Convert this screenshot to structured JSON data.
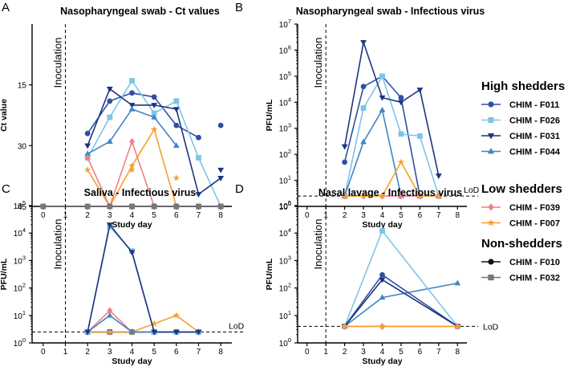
{
  "colors": {
    "F011": "#2e4fa3",
    "F026": "#7ec4e8",
    "F031": "#1d3480",
    "F044": "#3d86c4",
    "F039": "#f07f88",
    "F007": "#f5a02e",
    "F010": "#111111",
    "F032": "#777777"
  },
  "legend": {
    "groups": [
      {
        "title": "High shedders",
        "items": [
          {
            "key": "F011",
            "label": "CHIM - F011",
            "marker": "circle"
          },
          {
            "key": "F026",
            "label": "CHIM - F026",
            "marker": "square"
          },
          {
            "key": "F031",
            "label": "CHIM - F031",
            "marker": "tri-down"
          },
          {
            "key": "F044",
            "label": "CHIM - F044",
            "marker": "tri-up"
          }
        ]
      },
      {
        "title": "Low shedders",
        "items": [
          {
            "key": "F039",
            "label": "CHIM - F039",
            "marker": "diamond"
          },
          {
            "key": "F007",
            "label": "CHIM - F007",
            "marker": "star"
          }
        ]
      },
      {
        "title": "Non-shedders",
        "items": [
          {
            "key": "F010",
            "label": "CHIM - F010",
            "marker": "circle"
          },
          {
            "key": "F032",
            "label": "CHIM - F032",
            "marker": "square"
          }
        ]
      }
    ]
  },
  "chart_data": [
    {
      "id": "A",
      "panel_letter": "A",
      "type": "line",
      "title": "Nasopharyngeal swab - Ct values",
      "xlabel": "Study day",
      "ylabel": "Ct value",
      "yscale": "linear",
      "yreversed": true,
      "ylim": [
        0,
        45
      ],
      "xlim": [
        -0.5,
        8.5
      ],
      "x_ticks": [
        "0",
        "1",
        "2",
        "3",
        "4",
        "5",
        "6",
        "7",
        "8"
      ],
      "y_ticks": [
        {
          "v": 15,
          "label": "15"
        },
        {
          "v": 30,
          "label": "30"
        },
        {
          "v": 45,
          "label": "45"
        }
      ],
      "annotation": "Inoculation",
      "series": [
        {
          "key": "F011",
          "points": [
            [
              2,
              27
            ],
            [
              3,
              19
            ],
            [
              4,
              17
            ],
            [
              5,
              18
            ],
            [
              6,
              25
            ],
            [
              7,
              28
            ]
          ],
          "extra_points": [
            [
              8,
              25
            ]
          ]
        },
        {
          "key": "F026",
          "points": [
            [
              2,
              33
            ],
            [
              3,
              23
            ],
            [
              4,
              14
            ],
            [
              5,
              22
            ],
            [
              6,
              19
            ],
            [
              7,
              33
            ],
            [
              8,
              45
            ]
          ]
        },
        {
          "key": "F031",
          "points": [
            [
              2,
              30
            ],
            [
              3,
              16
            ],
            [
              4,
              20
            ],
            [
              5,
              20
            ],
            [
              6,
              21
            ],
            [
              7,
              42
            ],
            [
              8,
              38
            ]
          ],
          "extra_points": [
            [
              8,
              36
            ]
          ]
        },
        {
          "key": "F044",
          "points": [
            [
              2,
              32
            ],
            [
              3,
              29
            ],
            [
              4,
              21
            ],
            [
              5,
              23
            ],
            [
              6,
              30
            ]
          ]
        },
        {
          "key": "F039",
          "points": [
            [
              2,
              33
            ],
            [
              3,
              45
            ],
            [
              4,
              29
            ],
            [
              5,
              45
            ]
          ]
        },
        {
          "key": "F007",
          "points": [
            [
              2,
              36
            ],
            [
              3,
              45
            ],
            [
              4,
              35
            ],
            [
              5,
              26
            ],
            [
              6,
              45
            ]
          ],
          "extra_points": [
            [
              4,
              36
            ],
            [
              6,
              38
            ]
          ]
        },
        {
          "key": "F010",
          "points": [
            [
              0,
              45
            ],
            [
              2,
              45
            ],
            [
              3,
              45
            ],
            [
              4,
              45
            ],
            [
              5,
              45
            ],
            [
              6,
              45
            ],
            [
              7,
              45
            ],
            [
              8,
              45
            ]
          ]
        },
        {
          "key": "F032",
          "points": [
            [
              0,
              45
            ],
            [
              2,
              45
            ],
            [
              3,
              45
            ],
            [
              4,
              45
            ],
            [
              5,
              45
            ],
            [
              6,
              45
            ],
            [
              7,
              45
            ],
            [
              8,
              45
            ]
          ]
        }
      ]
    },
    {
      "id": "B",
      "panel_letter": "B",
      "type": "line",
      "title": "Nasopharyngeal swab - Infectious virus",
      "xlabel": "Study day",
      "ylabel": "PFU/mL",
      "yscale": "log",
      "ylim": [
        1,
        10000000
      ],
      "xlim": [
        -0.5,
        8.5
      ],
      "x_ticks": [
        "0",
        "1",
        "2",
        "3",
        "4",
        "5",
        "6",
        "7",
        "8"
      ],
      "y_ticks": [
        {
          "v": 1,
          "base": "10",
          "exp": "0"
        },
        {
          "v": 10,
          "base": "10",
          "exp": "1"
        },
        {
          "v": 100,
          "base": "10",
          "exp": "2"
        },
        {
          "v": 1000,
          "base": "10",
          "exp": "3"
        },
        {
          "v": 10000,
          "base": "10",
          "exp": "4"
        },
        {
          "v": 100000,
          "base": "10",
          "exp": "5"
        },
        {
          "v": 1000000,
          "base": "10",
          "exp": "6"
        },
        {
          "v": 10000000,
          "base": "10",
          "exp": "7"
        }
      ],
      "annotation": "Inoculation",
      "lod": 2.5,
      "lod_label": "LoD",
      "series": [
        {
          "key": "F011",
          "points": [
            [
              2,
              50
            ],
            [
              3,
              40000
            ],
            [
              4,
              100000
            ],
            [
              5,
              15000
            ],
            [
              6,
              2.5
            ],
            [
              7,
              2.5
            ]
          ]
        },
        {
          "key": "F026",
          "points": [
            [
              2,
              2.5
            ],
            [
              3,
              6000
            ],
            [
              4,
              100000
            ],
            [
              5,
              600
            ],
            [
              6,
              500
            ],
            [
              7,
              2.5
            ]
          ]
        },
        {
          "key": "F031",
          "points": [
            [
              2,
              200
            ],
            [
              3,
              2000000
            ],
            [
              4,
              15000
            ],
            [
              5,
              10000
            ],
            [
              6,
              30000
            ],
            [
              7,
              15
            ]
          ]
        },
        {
          "key": "F044",
          "points": [
            [
              2,
              2.5
            ],
            [
              3,
              300
            ],
            [
              4,
              5000
            ],
            [
              5,
              2.5
            ],
            [
              6,
              2.5
            ],
            [
              7,
              2.5
            ]
          ]
        },
        {
          "key": "F039",
          "points": [
            [
              2,
              2.5
            ],
            [
              3,
              2.5
            ],
            [
              4,
              2.5
            ],
            [
              5,
              2.5
            ],
            [
              6,
              2.5
            ],
            [
              7,
              2.5
            ]
          ]
        },
        {
          "key": "F007",
          "points": [
            [
              2,
              2.5
            ],
            [
              3,
              2.5
            ],
            [
              4,
              2.5
            ],
            [
              5,
              50
            ],
            [
              6,
              2.5
            ],
            [
              7,
              2.5
            ]
          ]
        }
      ]
    },
    {
      "id": "C",
      "panel_letter": "C",
      "type": "line",
      "title": "Saliva - Infectious virus",
      "xlabel": "Study day",
      "ylabel": "PFU/mL",
      "yscale": "log",
      "ylim": [
        1,
        100000
      ],
      "xlim": [
        -0.5,
        8.5
      ],
      "x_ticks": [
        "0",
        "1",
        "2",
        "3",
        "4",
        "5",
        "6",
        "7",
        "8"
      ],
      "y_ticks": [
        {
          "v": 1,
          "base": "10",
          "exp": "0"
        },
        {
          "v": 10,
          "base": "10",
          "exp": "1"
        },
        {
          "v": 100,
          "base": "10",
          "exp": "2"
        },
        {
          "v": 1000,
          "base": "10",
          "exp": "3"
        },
        {
          "v": 10000,
          "base": "10",
          "exp": "4"
        },
        {
          "v": 100000,
          "base": "10",
          "exp": "5"
        }
      ],
      "annotation": "Inoculation",
      "lod": 2.5,
      "lod_label": "LoD",
      "series": [
        {
          "key": "F010",
          "points": [
            [
              2,
              2.5
            ],
            [
              3,
              2.5
            ],
            [
              4,
              2.5
            ],
            [
              5,
              2.5
            ],
            [
              6,
              2.5
            ],
            [
              7,
              2.5
            ]
          ]
        },
        {
          "key": "F032",
          "points": [
            [
              2,
              2.5
            ],
            [
              3,
              2.5
            ],
            [
              4,
              2.5
            ],
            [
              5,
              2.5
            ],
            [
              6,
              2.5
            ],
            [
              7,
              2.5
            ]
          ]
        },
        {
          "key": "F011",
          "points": [
            [
              2,
              2.5
            ],
            [
              3,
              2.5
            ],
            [
              4,
              2.5
            ],
            [
              5,
              2.5
            ],
            [
              6,
              2.5
            ],
            [
              7,
              2.5
            ]
          ]
        },
        {
          "key": "F007",
          "points": [
            [
              2,
              2.5
            ],
            [
              3,
              2.5
            ],
            [
              4,
              2.5
            ],
            [
              5,
              5
            ],
            [
              6,
              10
            ],
            [
              7,
              2.5
            ]
          ]
        },
        {
          "key": "F039",
          "points": [
            [
              2,
              2.5
            ],
            [
              3,
              15
            ],
            [
              4,
              2.5
            ],
            [
              5,
              2.5
            ],
            [
              6,
              2.5
            ],
            [
              7,
              2.5
            ]
          ]
        },
        {
          "key": "F044",
          "points": [
            [
              2,
              2.5
            ],
            [
              3,
              10
            ],
            [
              4,
              2.5
            ],
            [
              5,
              2.5
            ],
            [
              6,
              2.5
            ],
            [
              7,
              2.5
            ]
          ]
        },
        {
          "key": "F026",
          "points": [
            [
              2,
              2.5
            ],
            [
              3,
              17000
            ],
            [
              4,
              2200
            ],
            [
              5,
              2.5
            ],
            [
              6,
              2.5
            ],
            [
              7,
              2.5
            ]
          ]
        },
        {
          "key": "F031",
          "points": [
            [
              2,
              2.5
            ],
            [
              3,
              20000
            ],
            [
              4,
              2000
            ],
            [
              5,
              2.5
            ],
            [
              6,
              2.5
            ],
            [
              7,
              2.5
            ]
          ]
        }
      ]
    },
    {
      "id": "D",
      "panel_letter": "D",
      "type": "line",
      "title": "Nasal lavage - Infectious virus",
      "xlabel": "Study day",
      "ylabel": "PFU/mL",
      "yscale": "log",
      "ylim": [
        1,
        100000
      ],
      "xlim": [
        -0.5,
        8.5
      ],
      "x_ticks": [
        "0",
        "1",
        "2",
        "3",
        "4",
        "5",
        "6",
        "7",
        "8"
      ],
      "y_ticks": [
        {
          "v": 1,
          "base": "10",
          "exp": "0"
        },
        {
          "v": 10,
          "base": "10",
          "exp": "1"
        },
        {
          "v": 100,
          "base": "10",
          "exp": "2"
        },
        {
          "v": 1000,
          "base": "10",
          "exp": "3"
        },
        {
          "v": 10000,
          "base": "10",
          "exp": "4"
        },
        {
          "v": 100000,
          "base": "10",
          "exp": "5"
        }
      ],
      "annotation": "Inoculation",
      "lod": 4,
      "lod_label": "LoD",
      "series": [
        {
          "key": "F044",
          "points": [
            [
              2,
              4
            ],
            [
              4,
              45
            ],
            [
              8,
              150
            ]
          ]
        },
        {
          "key": "F026",
          "points": [
            [
              2,
              4
            ],
            [
              4,
              12000
            ],
            [
              8,
              4
            ]
          ]
        },
        {
          "key": "F011",
          "points": [
            [
              2,
              4
            ],
            [
              4,
              300
            ],
            [
              8,
              4
            ]
          ]
        },
        {
          "key": "F031",
          "points": [
            [
              2,
              4
            ],
            [
              4,
              200
            ],
            [
              8,
              4
            ]
          ]
        },
        {
          "key": "F039",
          "points": [
            [
              2,
              4
            ],
            [
              4,
              4
            ],
            [
              8,
              4
            ]
          ]
        },
        {
          "key": "F007",
          "points": [
            [
              2,
              4
            ],
            [
              4,
              4
            ],
            [
              8,
              4
            ]
          ]
        }
      ]
    }
  ]
}
